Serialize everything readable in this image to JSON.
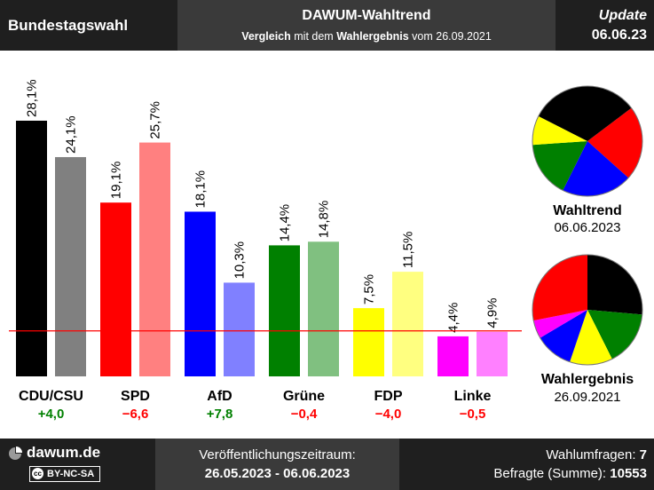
{
  "header": {
    "left_title": "Bundestagswahl",
    "title": "DAWUM-Wahltrend",
    "subtitle_bold1": "Vergleich",
    "subtitle_mid": " mit dem ",
    "subtitle_bold2": "Wahlergebnis",
    "subtitle_end": " vom 26.09.2021",
    "update_label": "Update",
    "update_date": "06.06.23"
  },
  "chart_data": {
    "type": "bar",
    "categories": [
      "CDU/CSU",
      "SPD",
      "AfD",
      "Grüne",
      "FDP",
      "Linke"
    ],
    "series": [
      {
        "name": "Wahltrend 06.06.2023",
        "values": [
          28.1,
          19.1,
          18.1,
          14.4,
          7.5,
          4.4
        ],
        "labels": [
          "28,1%",
          "19,1%",
          "18,1%",
          "14,4%",
          "7,5%",
          "4,4%"
        ]
      },
      {
        "name": "Wahlergebnis 26.09.2021",
        "values": [
          24.1,
          25.7,
          10.3,
          14.8,
          11.5,
          4.9
        ],
        "labels": [
          "24,1%",
          "25,7%",
          "10,3%",
          "14,8%",
          "11,5%",
          "4,9%"
        ]
      }
    ],
    "colors": {
      "trend": [
        "#000000",
        "#ff0000",
        "#0000ff",
        "#008000",
        "#ffff00",
        "#ff00ff"
      ],
      "result": [
        "#808080",
        "#ff8080",
        "#8080ff",
        "#80c080",
        "#ffff80",
        "#ff80ff"
      ]
    },
    "differences": [
      "+4,0",
      "−6,6",
      "+7,8",
      "−0,4",
      "−4,0",
      "−0,5"
    ],
    "diff_values": [
      4.0,
      -6.6,
      7.8,
      -0.4,
      -4.0,
      -0.5
    ],
    "threshold": 5,
    "ylim": [
      0,
      30
    ]
  },
  "pies": {
    "trend": {
      "title": "Wahltrend",
      "date": "06.06.2023",
      "slices": [
        {
          "party": "SPD",
          "value": 19.1,
          "color": "#ff0000"
        },
        {
          "party": "AfD",
          "value": 18.1,
          "color": "#0000ff"
        },
        {
          "party": "Grüne",
          "value": 14.4,
          "color": "#008000"
        },
        {
          "party": "FDP",
          "value": 7.5,
          "color": "#ffff00"
        },
        {
          "party": "CDU/CSU",
          "value": 28.1,
          "color": "#000000"
        }
      ]
    },
    "result": {
      "title": "Wahlergebnis",
      "date": "26.09.2021",
      "slices": [
        {
          "party": "CDU/CSU",
          "value": 24.1,
          "color": "#000000"
        },
        {
          "party": "Grüne",
          "value": 14.8,
          "color": "#008000"
        },
        {
          "party": "FDP",
          "value": 11.5,
          "color": "#ffff00"
        },
        {
          "party": "AfD",
          "value": 10.3,
          "color": "#0000ff"
        },
        {
          "party": "Linke",
          "value": 4.9,
          "color": "#ff00ff"
        },
        {
          "party": "SPD",
          "value": 25.7,
          "color": "#ff0000"
        }
      ]
    }
  },
  "footer": {
    "brand": "dawum.de",
    "license": "BY-NC-SA",
    "license_mark": "cc",
    "period_label": "Veröffentlichungszeitraum:",
    "period": "26.05.2023 - 06.06.2023",
    "polls_label": "Wahlumfragen: ",
    "polls_value": "7",
    "respondents_label": "Befragte (Summe): ",
    "respondents_value": "10553"
  },
  "colors": {
    "positive": "#008000",
    "negative": "#ff0000",
    "threshold_line": "#ff0000"
  }
}
